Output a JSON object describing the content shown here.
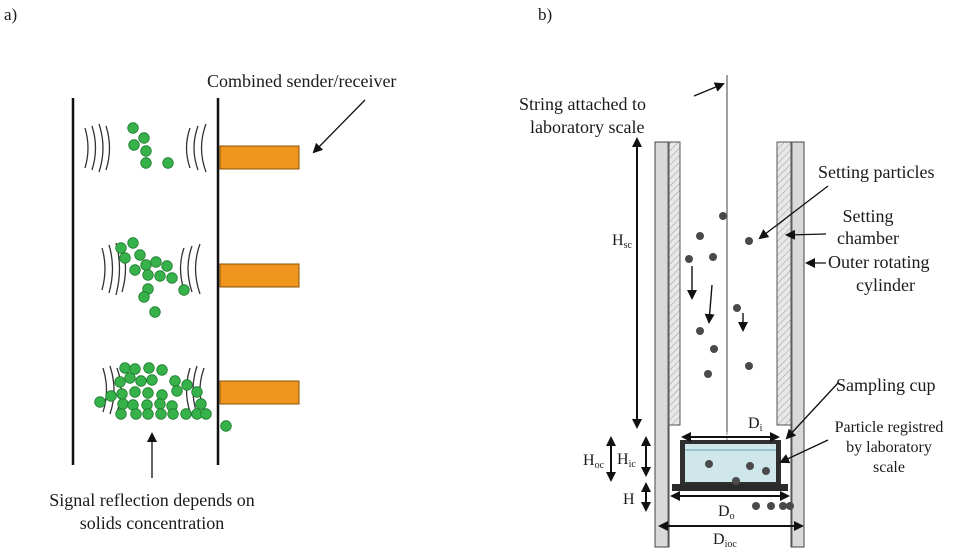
{
  "panel_a": {
    "label": "a)",
    "sender_label": "Combined sender/receiver",
    "caption_line1": "Signal reflection depends on",
    "caption_line2": "solids concentration",
    "colors": {
      "particle": "#37b24a",
      "particle_stroke": "#1e7a2e",
      "sender": "#f0961e",
      "sender_stroke": "#8a5208"
    }
  },
  "panel_b": {
    "label": "b)",
    "string_line1": "String attached to",
    "string_line2": "laboratory scale",
    "setting_particles": "Setting particles",
    "setting_chamber_line1": "Setting",
    "setting_chamber_line2": "chamber",
    "outer_cylinder_line1": "Outer rotating",
    "outer_cylinder_line2": "cylinder",
    "sampling_cup": "Sampling cup",
    "registered_line1": "Particle registred",
    "registered_line2": "by laboratory",
    "registered_line3": "scale",
    "dims": {
      "Hsc": {
        "main": "H",
        "sub": "sc"
      },
      "Hoc": {
        "main": "H",
        "sub": "oc"
      },
      "Hic": {
        "main": "H",
        "sub": "ic"
      },
      "H": {
        "main": "H",
        "sub": ""
      },
      "Di": {
        "main": "D",
        "sub": "i"
      },
      "Do": {
        "main": "D",
        "sub": "o"
      },
      "Dioc": {
        "main": "D",
        "sub": "ioc"
      }
    },
    "colors": {
      "particle": "#4a4a4a",
      "cup_fill": "#cfe6ea",
      "wall_fill": "#d9d9d9"
    }
  }
}
